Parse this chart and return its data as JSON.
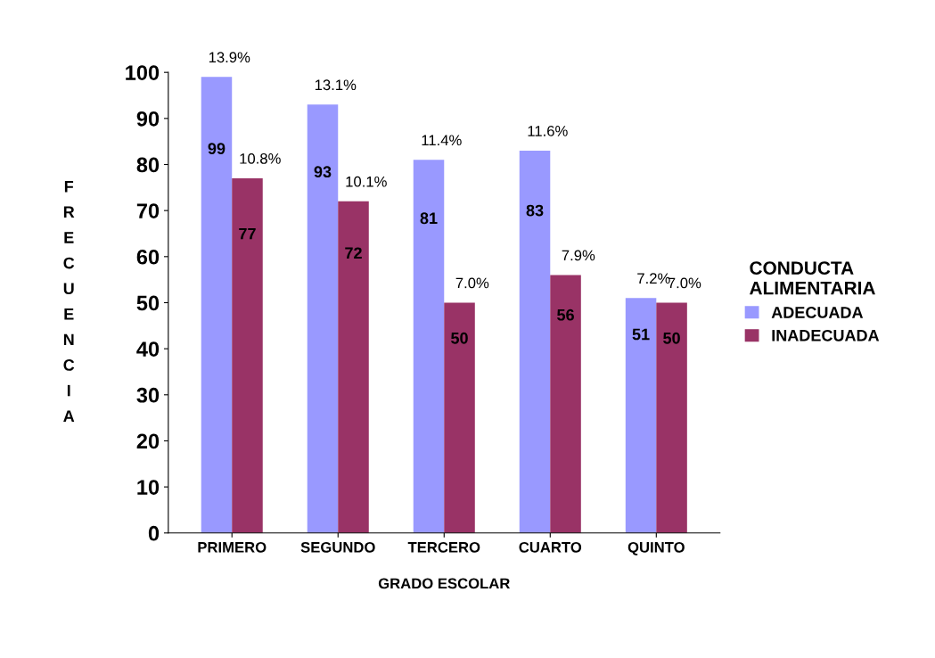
{
  "chart_data": {
    "type": "bar",
    "categories": [
      "PRIMERO",
      "SEGUNDO",
      "TERCERO",
      "CUARTO",
      "QUINTO"
    ],
    "series": [
      {
        "name": "ADECUADA",
        "color": "#9999ff",
        "values": [
          99,
          93,
          81,
          83,
          51
        ]
      },
      {
        "name": "INADECUADA",
        "color": "#993366",
        "values": [
          77,
          72,
          50,
          56,
          50
        ]
      }
    ],
    "annotations": [
      {
        "text": "13.9%",
        "x": "PRIMERO",
        "y": 99
      },
      {
        "text": "10.8%",
        "x": "PRIMERO",
        "y": 77
      },
      {
        "text": "13.1%",
        "x": "SEGUNDO",
        "y": 93
      },
      {
        "text": "10.1%",
        "x": "SEGUNDO",
        "y": 72
      },
      {
        "text": "11.4%",
        "x": "TERCERO",
        "y": 81
      },
      {
        "text": "7.0%",
        "x": "TERCERO",
        "y": 50
      },
      {
        "text": "11.6%",
        "x": "CUARTO",
        "y": 83
      },
      {
        "text": "7.9%",
        "x": "CUARTO",
        "y": 56
      },
      {
        "text": "7.2%",
        "x": "QUINTO",
        "y": 51
      },
      {
        "text": "7.0%",
        "x": "QUINTO",
        "y": 50
      }
    ],
    "xlabel": "GRADO ESCOLAR",
    "ylabel": "FRECUENCIA",
    "legend_title": "CONDUCTA\nALIMENTARIA",
    "ylim": [
      0,
      100
    ],
    "yticks": [
      0,
      10,
      20,
      30,
      40,
      50,
      60,
      70,
      80,
      90,
      100
    ],
    "data_labels": true,
    "grid": false,
    "legend": "right"
  }
}
